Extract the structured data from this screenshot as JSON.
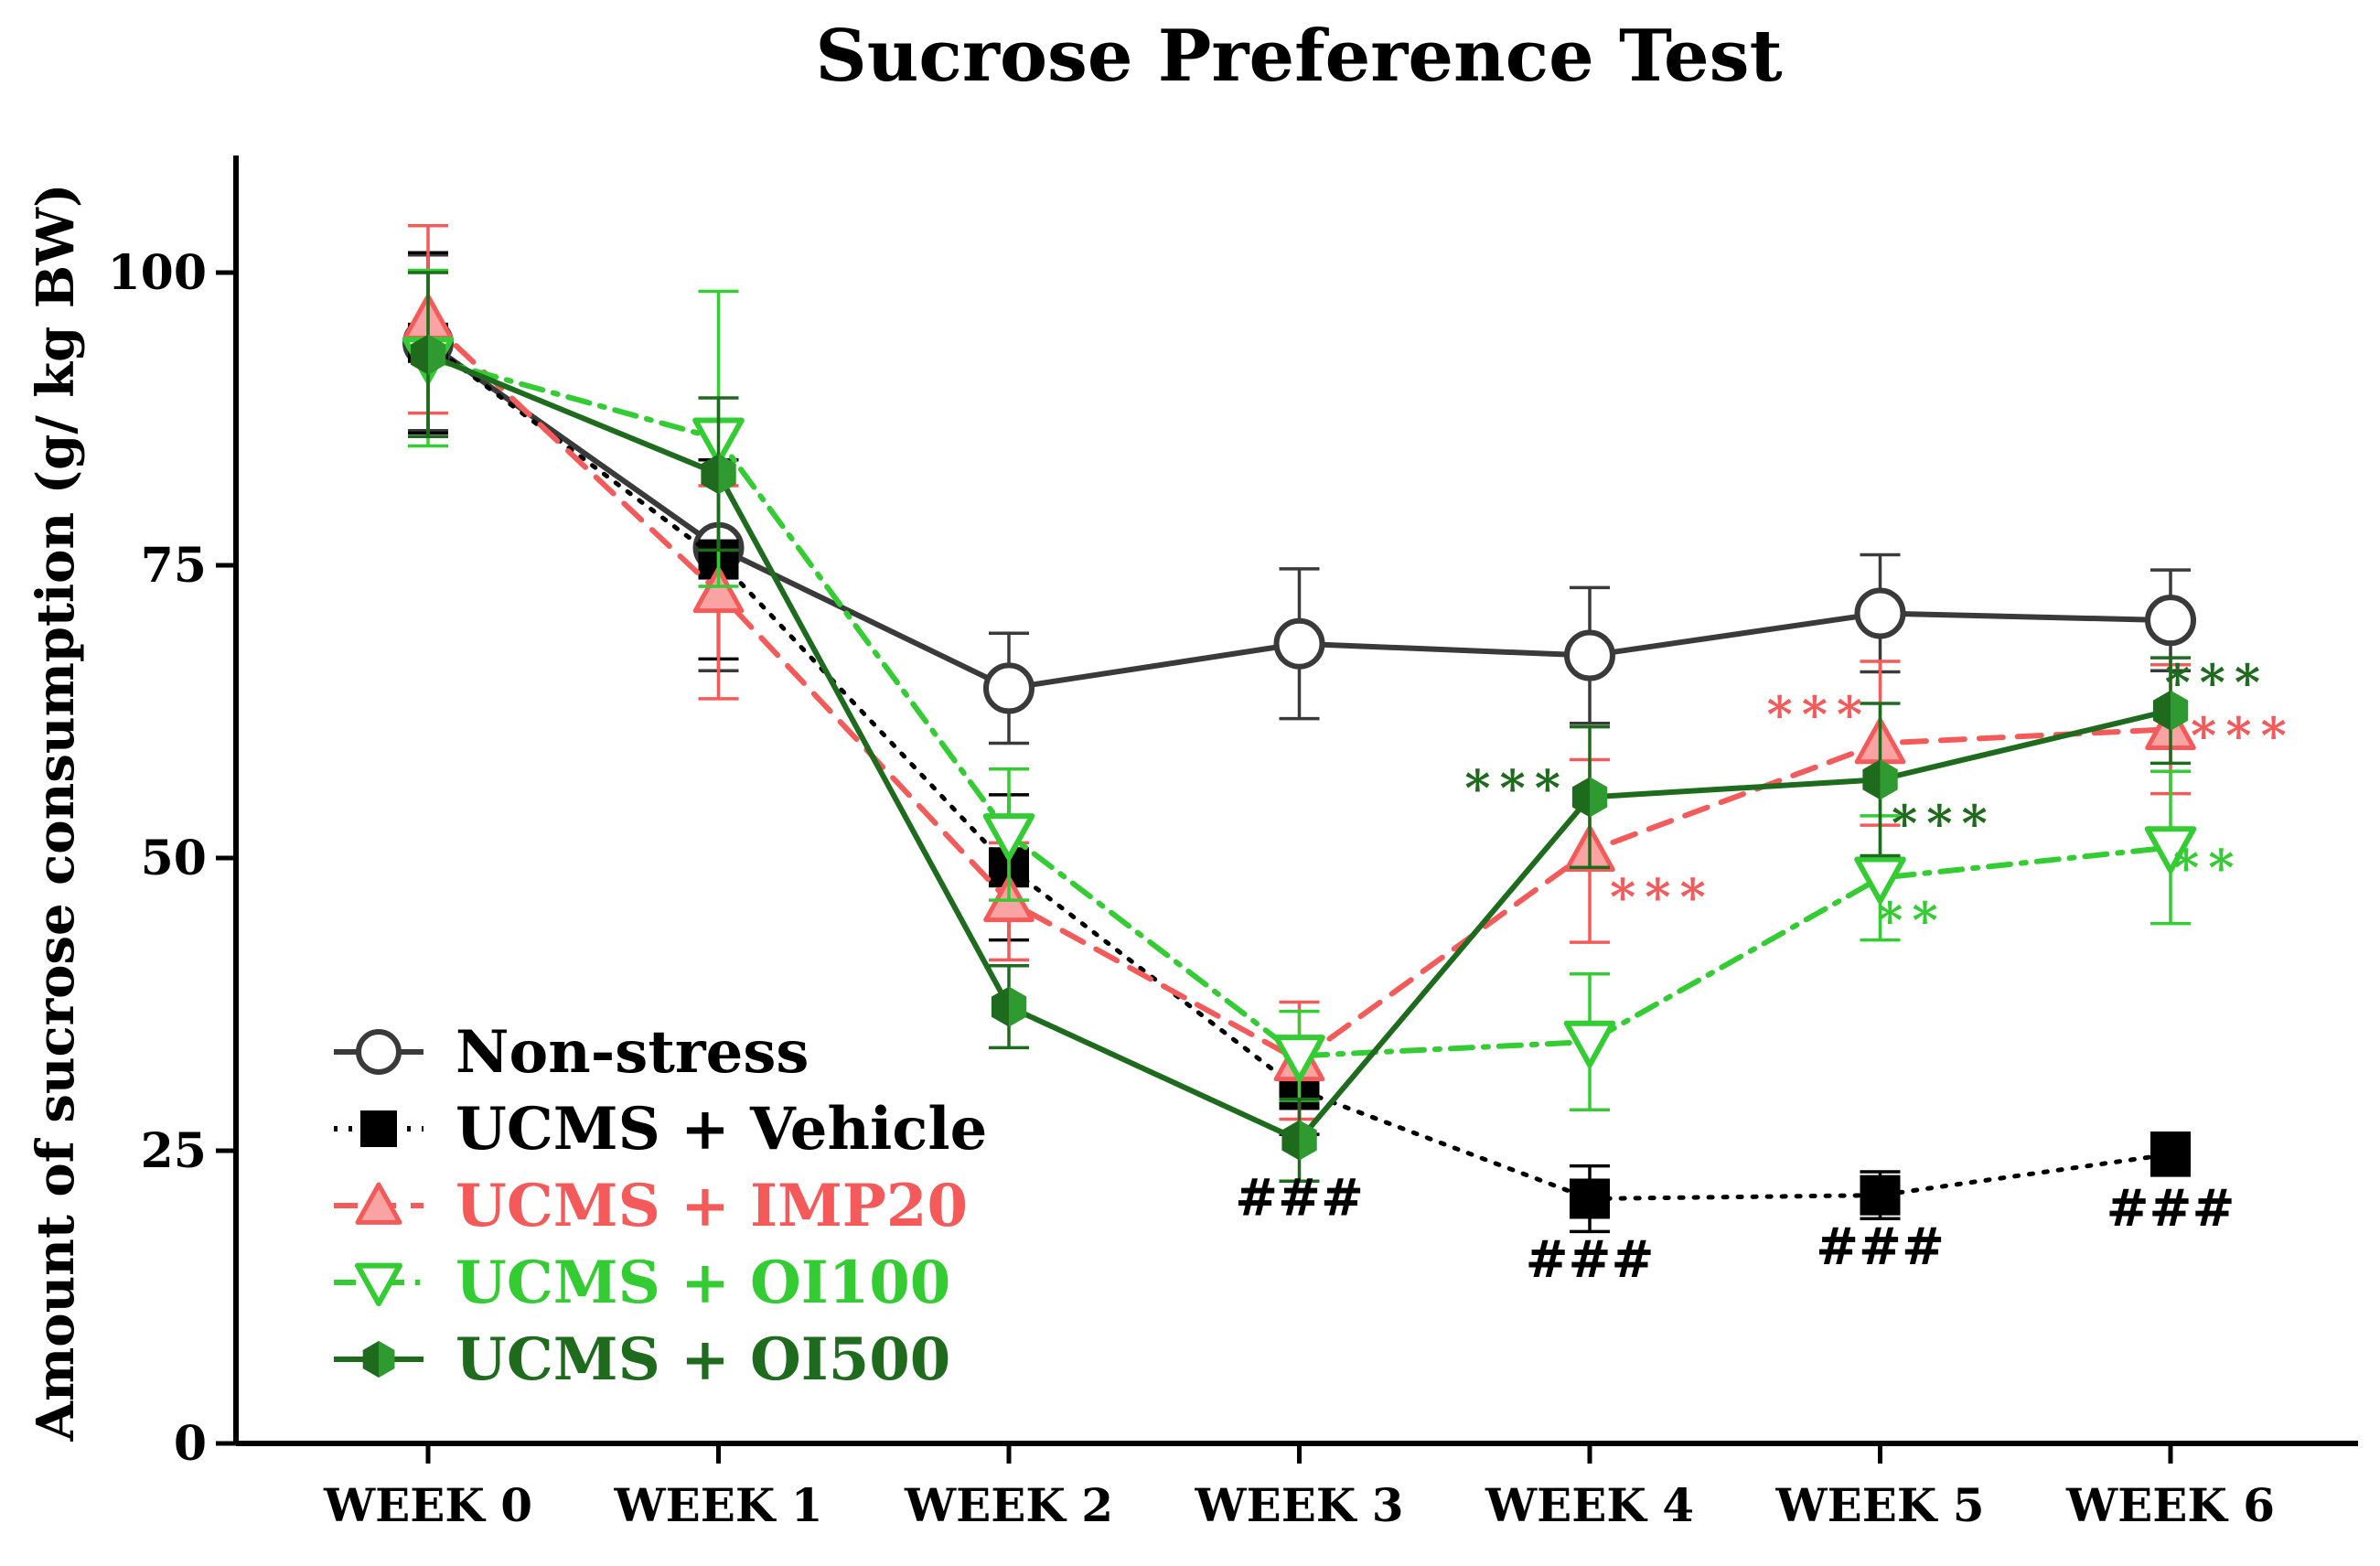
{
  "chart_data": {
    "type": "line",
    "title": "Sucrose Preference Test",
    "xlabel": "",
    "ylabel": "Amount of sucrose consumption (g/ kg  BW)",
    "categories": [
      "WEEK 0",
      "WEEK 1",
      "WEEK 2",
      "WEEK 3",
      "WEEK 4",
      "WEEK 5",
      "WEEK 6"
    ],
    "ylim": [
      0,
      110
    ],
    "yticks": [
      0,
      25,
      50,
      75,
      100
    ],
    "legend_position": "bottom-left",
    "grid": false,
    "series": [
      {
        "name": "Non-stress",
        "color": "#3a3a3a",
        "line_style": "solid",
        "marker": "circle-open",
        "values": [
          94,
          76.5,
          64.5,
          68.3,
          67.3,
          70.9,
          70.3
        ],
        "errors": [
          7.5,
          10.5,
          4.7,
          6.4,
          5.8,
          5.0,
          4.3
        ]
      },
      {
        "name": "UCMS + Vehicle",
        "color": "#000000",
        "line_style": "dotted",
        "marker": "square",
        "values": [
          94,
          75.5,
          49.2,
          30.2,
          20.9,
          21.2,
          24.7
        ],
        "errors": [
          7.7,
          8.5,
          6.2,
          3.8,
          2.8,
          2.0,
          1.8
        ]
      },
      {
        "name": "UCMS + IMP20",
        "color": "#f45a5a",
        "line_style": "dashed",
        "marker": "triangle-up",
        "values": [
          96,
          72.7,
          46.3,
          32.7,
          50.6,
          59.8,
          61
        ],
        "errors": [
          8,
          9.1,
          5.0,
          5.0,
          7.8,
          7.0,
          5.5
        ]
      },
      {
        "name": "UCMS + OI100",
        "color": "#33cc33",
        "line_style": "dashdot",
        "marker": "triangle-down",
        "values": [
          92.7,
          85.8,
          52,
          33.1,
          34.3,
          48.3,
          50.9
        ],
        "errors": [
          7.5,
          12.6,
          5.6,
          3.8,
          5.8,
          5.3,
          6.5
        ]
      },
      {
        "name": "UCMS + OI500",
        "color": "#1e6b1e",
        "line_style": "solid",
        "marker": "hexagon",
        "values": [
          93,
          82.8,
          37.3,
          25.9,
          55.2,
          56.7,
          62.6
        ],
        "errors": [
          7.0,
          6.5,
          3.5,
          3.5,
          6.0,
          6.5,
          4.5
        ]
      }
    ],
    "annotations": [
      {
        "text": "###",
        "color": "#000000",
        "x_index": 3,
        "y": 19.5,
        "anchor": "middle"
      },
      {
        "text": "###",
        "color": "#000000",
        "x_index": 4,
        "y": 14.2,
        "anchor": "middle"
      },
      {
        "text": "###",
        "color": "#000000",
        "x_index": 5,
        "y": 15.3,
        "anchor": "middle"
      },
      {
        "text": "###",
        "color": "#000000",
        "x_index": 6,
        "y": 18.6,
        "anchor": "middle"
      },
      {
        "text": "***",
        "color": "#1e6b1e",
        "x_index": 3.75,
        "y": 54.5,
        "anchor": "middle"
      },
      {
        "text": "***",
        "color": "#f45a5a",
        "x_index": 4.25,
        "y": 45.2,
        "anchor": "middle"
      },
      {
        "text": "***",
        "color": "#f45a5a",
        "x_index": 4.79,
        "y": 60.8,
        "anchor": "middle"
      },
      {
        "text": "**",
        "color": "#33cc33",
        "x_index": 5.11,
        "y": 43.2,
        "anchor": "middle"
      },
      {
        "text": "***",
        "color": "#1e6b1e",
        "x_index": 5.22,
        "y": 51.5,
        "anchor": "middle"
      },
      {
        "text": "***",
        "color": "#1e6b1e",
        "x_index": 6.16,
        "y": 63.5,
        "anchor": "middle"
      },
      {
        "text": "***",
        "color": "#f45a5a",
        "x_index": 6.25,
        "y": 59.0,
        "anchor": "middle"
      },
      {
        "text": "**",
        "color": "#33cc33",
        "x_index": 6.13,
        "y": 47.7,
        "anchor": "middle"
      }
    ]
  }
}
